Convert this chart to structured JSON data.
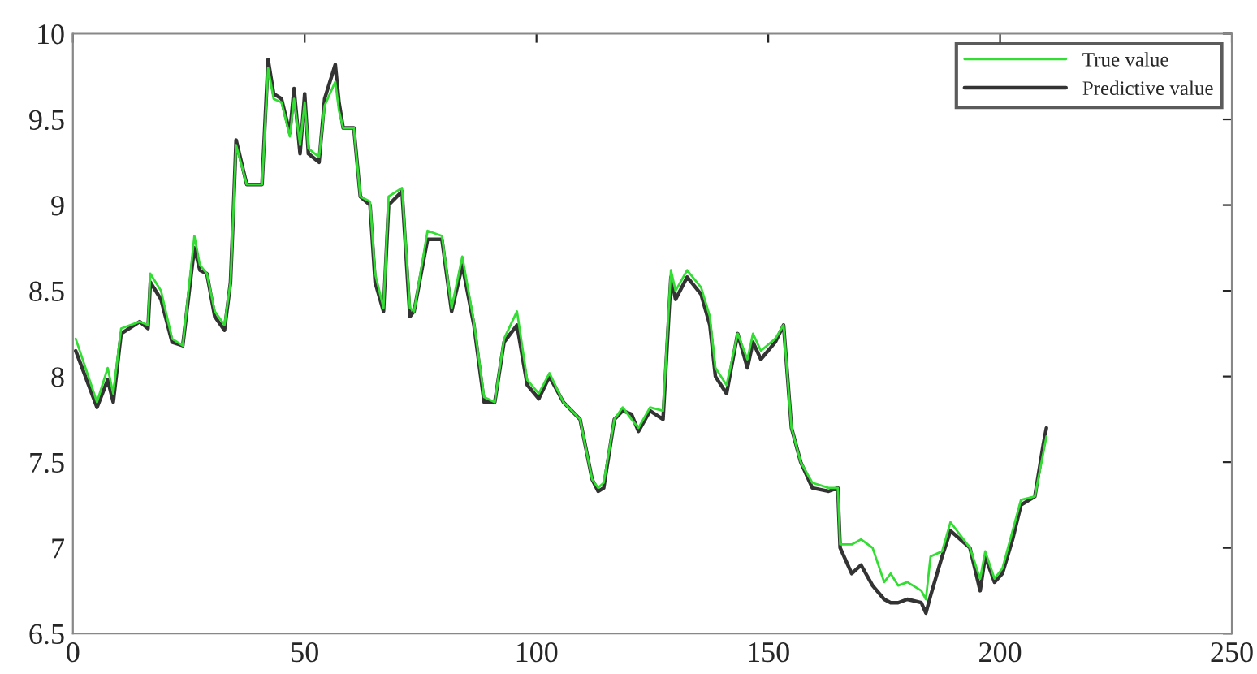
{
  "chart_data": {
    "type": "line",
    "xlim": [
      0,
      250
    ],
    "ylim": [
      6.5,
      10
    ],
    "xticks": [
      0,
      50,
      100,
      150,
      200,
      250
    ],
    "yticks": [
      6.5,
      7,
      {
        "value": 7.5,
        "label": "7.5"
      },
      8,
      8.5,
      9,
      9.5,
      10
    ],
    "grid": false,
    "legend": "top right",
    "marker": "none",
    "line_style": "solid",
    "series": [
      {
        "name": "True value",
        "color": "#33dd33",
        "x": [
          0.6,
          5.2,
          7.5,
          8.7,
          10.4,
          14.4,
          16.2,
          16.7,
          19,
          21.4,
          23.7,
          26.2,
          27.4,
          28.9,
          30.6,
          32.7,
          34,
          34.6,
          35.2,
          37.5,
          40.8,
          42.1,
          43.3,
          45,
          46.8,
          47.7,
          49,
          50,
          50.8,
          53.1,
          54.3,
          56.6,
          57.4,
          58.3,
          60.6,
          62,
          64.1,
          65.2,
          67,
          68.1,
          71,
          72.7,
          73.6,
          76.5,
          79.6,
          81.7,
          84,
          86.5,
          88.7,
          91,
          93,
          95.8,
          98,
          100.5,
          102.8,
          105.8,
          109.4,
          112,
          113.3,
          114.5,
          116.8,
          118.6,
          120.5,
          122,
          124.5,
          127.3,
          129,
          130,
          132.5,
          135.5,
          137.4,
          138.6,
          141,
          143.4,
          145.5,
          146.7,
          148.4,
          151.5,
          153.3,
          155,
          157,
          159.5,
          163,
          165,
          165.5,
          168,
          170,
          172.5,
          175,
          176.4,
          178,
          180,
          183,
          184,
          185,
          187.5,
          189.3,
          193.5,
          195.7,
          196.8,
          198.8,
          200.5,
          202.7,
          204.5,
          207.5,
          209.3,
          210
        ],
        "values": [
          8.22,
          7.85,
          8.05,
          7.9,
          8.28,
          8.32,
          8.3,
          8.6,
          8.5,
          8.22,
          8.18,
          8.82,
          8.65,
          8.6,
          8.38,
          8.3,
          8.55,
          8.95,
          9.35,
          9.12,
          9.12,
          9.8,
          9.62,
          9.6,
          9.4,
          9.62,
          9.35,
          9.6,
          9.33,
          9.28,
          9.58,
          9.72,
          9.55,
          9.45,
          9.45,
          9.05,
          9.02,
          8.6,
          8.4,
          9.05,
          9.1,
          8.4,
          8.38,
          8.85,
          8.82,
          8.4,
          8.7,
          8.32,
          7.88,
          7.85,
          8.22,
          8.38,
          7.98,
          7.9,
          8.02,
          7.85,
          7.75,
          7.4,
          7.35,
          7.38,
          7.75,
          7.82,
          7.75,
          7.7,
          7.82,
          7.8,
          8.62,
          8.5,
          8.62,
          8.52,
          8.35,
          8.05,
          7.95,
          8.25,
          8.1,
          8.25,
          8.15,
          8.22,
          8.3,
          7.7,
          7.5,
          7.38,
          7.35,
          7.35,
          7.02,
          7.02,
          7.05,
          7.0,
          6.8,
          6.85,
          6.78,
          6.8,
          6.75,
          6.7,
          6.95,
          6.98,
          7.15,
          7.0,
          6.82,
          6.98,
          6.82,
          6.88,
          7.1,
          7.28,
          7.3,
          7.55,
          7.65
        ]
      },
      {
        "name": "Predictive value",
        "color": "#333333",
        "x": [
          0.6,
          5.2,
          7.5,
          8.7,
          10.4,
          14.4,
          16.2,
          16.7,
          19,
          21.4,
          23.7,
          26.2,
          27.4,
          28.9,
          30.6,
          32.7,
          34,
          34.6,
          35.2,
          37.5,
          40.8,
          42.1,
          43.3,
          45,
          46.8,
          47.7,
          49,
          50,
          50.8,
          53.1,
          54.3,
          56.6,
          57.4,
          58.3,
          60.6,
          62,
          64.1,
          65.2,
          67,
          68.1,
          71,
          72.7,
          73.6,
          76.5,
          79.6,
          81.7,
          84,
          86.5,
          88.7,
          91,
          93,
          95.8,
          98,
          100.5,
          102.8,
          105.8,
          109.4,
          112,
          113.3,
          114.5,
          116.8,
          118.6,
          120.5,
          122,
          124.5,
          127.3,
          129,
          130,
          132.5,
          135.5,
          137.4,
          138.6,
          141,
          143.4,
          145.5,
          146.7,
          148.4,
          151.5,
          153.3,
          155,
          157,
          159.5,
          163,
          165,
          165.5,
          168,
          170,
          172.5,
          175,
          176.4,
          178,
          180,
          183,
          184,
          185,
          187.5,
          189.3,
          193.5,
          195.7,
          196.8,
          198.8,
          200.5,
          202.7,
          204.5,
          207.5,
          209.3,
          210
        ],
        "values": [
          8.15,
          7.82,
          7.98,
          7.85,
          8.25,
          8.32,
          8.28,
          8.55,
          8.45,
          8.2,
          8.18,
          8.75,
          8.62,
          8.6,
          8.35,
          8.27,
          8.55,
          8.95,
          9.38,
          9.12,
          9.12,
          9.85,
          9.65,
          9.62,
          9.42,
          9.68,
          9.3,
          9.65,
          9.3,
          9.25,
          9.62,
          9.82,
          9.6,
          9.45,
          9.45,
          9.05,
          9.0,
          8.55,
          8.38,
          9.0,
          9.08,
          8.35,
          8.38,
          8.8,
          8.8,
          8.38,
          8.65,
          8.3,
          7.85,
          7.85,
          8.2,
          8.3,
          7.95,
          7.87,
          8.0,
          7.85,
          7.75,
          7.4,
          7.33,
          7.35,
          7.75,
          7.8,
          7.78,
          7.68,
          7.8,
          7.75,
          8.58,
          8.45,
          8.58,
          8.48,
          8.3,
          8.0,
          7.9,
          8.25,
          8.05,
          8.2,
          8.1,
          8.2,
          8.3,
          7.7,
          7.5,
          7.35,
          7.33,
          7.35,
          7.0,
          6.85,
          6.9,
          6.78,
          6.7,
          6.68,
          6.68,
          6.7,
          6.68,
          6.62,
          6.72,
          6.95,
          7.1,
          7.0,
          6.75,
          6.95,
          6.8,
          6.85,
          7.05,
          7.25,
          7.3,
          7.6,
          7.7
        ]
      }
    ]
  }
}
